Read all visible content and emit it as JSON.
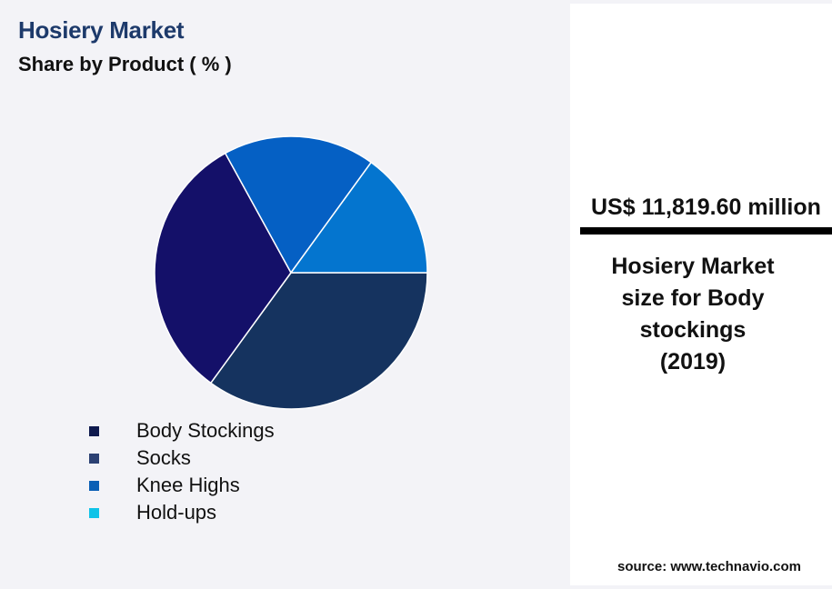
{
  "header": {
    "title": "Hosiery Market",
    "subtitle": "Share by Product ( % )"
  },
  "chart_data": {
    "type": "pie",
    "categories": [
      "Body Stockings",
      "Socks",
      "Knee Highs",
      "Hold-ups"
    ],
    "series": [
      {
        "values": [
          32,
          35,
          18,
          15
        ],
        "colors": [
          "#141069",
          "#15335f",
          "#0560c4",
          "#0475cf"
        ]
      }
    ],
    "title": "Share by Product ( % )",
    "legend": {
      "placement": "bottom-left",
      "items": [
        {
          "label": "Body Stockings",
          "color": "#0f1a4e"
        },
        {
          "label": "Socks",
          "color": "#2c4173"
        },
        {
          "label": "Knee Highs",
          "color": "#0a5fb5"
        },
        {
          "label": "Hold-ups",
          "color": "#0fc3e8"
        }
      ]
    }
  },
  "highlight": {
    "value": "US$ 11,819.60 million",
    "description_lines": [
      "Hosiery Market",
      "size for Body",
      "stockings",
      "(2019)"
    ]
  },
  "footer": {
    "source": "source: www.technavio.com"
  }
}
